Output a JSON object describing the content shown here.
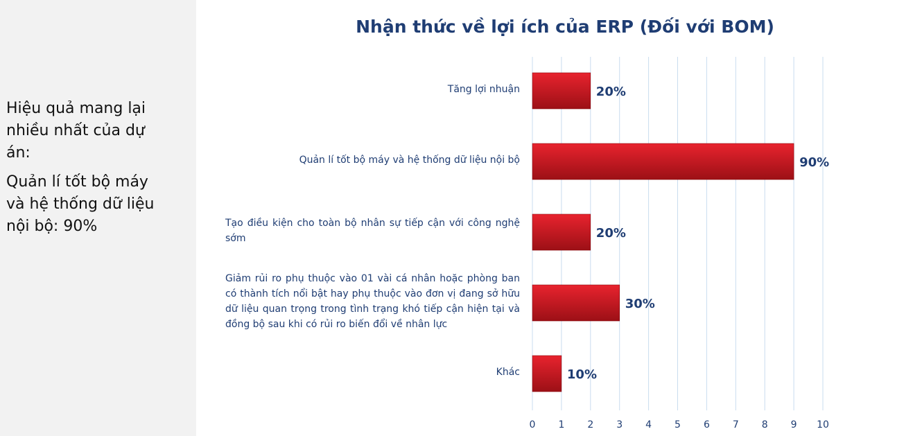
{
  "sidebar": {
    "paragraph1": "Hiệu quả mang lại nhiều nhất của dự án:",
    "paragraph2": "Quản lí tốt bộ máy và hệ thống dữ liệu nội bộ: 90%"
  },
  "chart_data": {
    "type": "bar",
    "orientation": "horizontal",
    "title": "Nhận thức về lợi ích của ERP (Đối với BOM)",
    "categories": [
      "Tăng lợi nhuận",
      "Quản lí tốt bộ máy và hệ thống dữ liệu nội bộ",
      "Tạo điều kiện cho toàn bộ nhân sự tiếp cận với công nghệ sớm",
      "Giảm rủi ro phụ thuộc vào 01 vài cá nhân hoặc phòng ban có thành tích nổi bật hay phụ thuộc vào đơn vị đang sở hữu dữ liệu quan trọng trong tình trạng khó tiếp cận hiện tại và đồng bộ sau khi có rủi ro biến đổi về nhân lực",
      "Khác"
    ],
    "values": [
      2,
      9,
      2,
      3,
      1
    ],
    "data_labels": [
      "20%",
      "90%",
      "20%",
      "30%",
      "10%"
    ],
    "xlim": [
      0,
      10
    ],
    "xticks": [
      "0",
      "1",
      "2",
      "3",
      "4",
      "5",
      "6",
      "7",
      "8",
      "9",
      "10"
    ],
    "grid": "vertical",
    "colors": {
      "bar_top": "#e8232e",
      "bar_bottom": "#9c1016",
      "label": "#1f3d73",
      "grid": "#c9dcef"
    }
  }
}
